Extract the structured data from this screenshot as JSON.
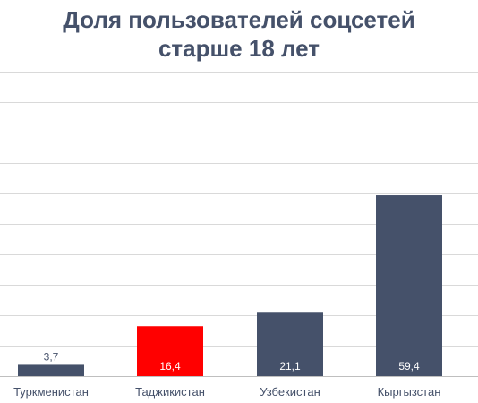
{
  "chart_data": {
    "type": "bar",
    "title_line1": "Доля пользователей соцсетей",
    "title_line2": "старше 18 лет",
    "xlabel": "",
    "ylabel": "",
    "categories": [
      "Туркменистан",
      "Таджикистан",
      "Узбекистан",
      "Кыргызстан"
    ],
    "values": [
      3.7,
      16.4,
      21.1,
      59.4
    ],
    "value_labels": [
      "3,7",
      "16,4",
      "21,1",
      "59,4"
    ],
    "bar_colors": [
      "#45516a",
      "#ff0000",
      "#45516a",
      "#45516a"
    ],
    "inside_label_color": "#ffffff",
    "outside_label_color": "#45516a",
    "ylim": [
      0,
      100
    ],
    "grid": true,
    "legend": "none"
  },
  "colors": {
    "title": "#45516a",
    "accent": "#ff0000",
    "bar": "#45516a"
  }
}
